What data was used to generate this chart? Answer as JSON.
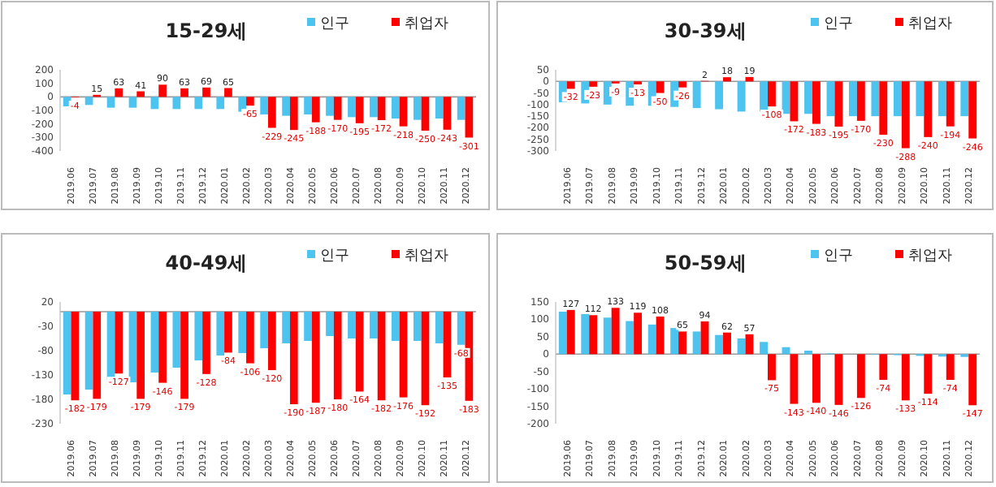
{
  "chart_data": [
    {
      "type": "bar",
      "title": "15-29세",
      "legend": "top right",
      "ylim": [
        -400,
        200
      ],
      "yticks": [
        -400,
        -300,
        -200,
        -100,
        0,
        100,
        200
      ],
      "categories": [
        "2019.06",
        "2019.07",
        "2019.08",
        "2019.09",
        "2019.10",
        "2019.11",
        "2019.12",
        "2020.01",
        "2020.02",
        "2020.03",
        "2020.04",
        "2020.05",
        "2020.06",
        "2020.07",
        "2020.08",
        "2020.09",
        "2020.10",
        "2020.11",
        "2020.12"
      ],
      "series": [
        {
          "name": "인구",
          "color": "#4dc3f0",
          "values": [
            -70,
            -60,
            -80,
            -80,
            -90,
            -90,
            -90,
            -90,
            -110,
            -130,
            -140,
            -130,
            -140,
            -150,
            -150,
            -160,
            -170,
            -160,
            -170
          ]
        },
        {
          "name": "취업자",
          "color": "#ff0000",
          "values": [
            -4,
            15,
            63,
            41,
            90,
            63,
            69,
            65,
            -65,
            -229,
            -245,
            -188,
            -170,
            -195,
            -172,
            -218,
            -250,
            -243,
            -301
          ],
          "value_labels": [
            "-4",
            "15",
            "63",
            "41",
            "90",
            "63",
            "69",
            "65",
            "-65",
            "-229",
            "-245",
            "-188",
            "-170",
            "-195",
            "-172",
            "-218",
            "-250",
            "-243",
            "-301"
          ]
        }
      ]
    },
    {
      "type": "bar",
      "title": "30-39세",
      "legend": "top right",
      "ylim": [
        -300,
        50
      ],
      "yticks": [
        -300,
        -250,
        -200,
        -150,
        -100,
        -50,
        0,
        50
      ],
      "categories": [
        "2019.06",
        "2019.07",
        "2019.08",
        "2019.09",
        "2019.10",
        "2019.11",
        "2019.12",
        "2020.01",
        "2020.02",
        "2020.03",
        "2020.04",
        "2020.05",
        "2020.06",
        "2020.07",
        "2020.08",
        "2020.09",
        "2020.10",
        "2020.11",
        "2020.12"
      ],
      "series": [
        {
          "name": "인구",
          "color": "#4dc3f0",
          "values": [
            -90,
            -95,
            -100,
            -105,
            -105,
            -110,
            -115,
            -120,
            -130,
            -130,
            -140,
            -140,
            -150,
            -150,
            -150,
            -150,
            -150,
            -150,
            -150
          ]
        },
        {
          "name": "취업자",
          "color": "#ff0000",
          "values": [
            -32,
            -23,
            -9,
            -13,
            -50,
            -26,
            2,
            18,
            19,
            -108,
            -172,
            -183,
            -195,
            -170,
            -230,
            -288,
            -240,
            -194,
            -246
          ],
          "value_labels": [
            "-32",
            "-23",
            "-9",
            "-13",
            "-50",
            "-26",
            "2",
            "18",
            "19",
            "-108",
            "-172",
            "-183",
            "-195",
            "-170",
            "-230",
            "-288",
            "-240",
            "-194",
            "-246"
          ]
        }
      ]
    },
    {
      "type": "bar",
      "title": "40-49세",
      "legend": "top right",
      "ylim": [
        -230,
        20
      ],
      "yticks": [
        -230,
        -180,
        -130,
        -80,
        -30,
        20
      ],
      "categories": [
        "2019.06",
        "2019.07",
        "2019.08",
        "2019.09",
        "2019.10",
        "2019.11",
        "2019.12",
        "2020.01",
        "2020.02",
        "2020.03",
        "2020.04",
        "2020.05",
        "2020.06",
        "2020.07",
        "2020.08",
        "2020.09",
        "2020.10",
        "2020.11",
        "2020.12"
      ],
      "series": [
        {
          "name": "인구",
          "color": "#4dc3f0",
          "values": [
            -170,
            -160,
            -140,
            -145,
            -125,
            -115,
            -100,
            -90,
            -85,
            -75,
            -65,
            -60,
            -50,
            -55,
            -55,
            -60,
            -60,
            -65,
            -68
          ],
          "value_labels": [
            null,
            null,
            null,
            null,
            null,
            null,
            null,
            null,
            null,
            null,
            null,
            null,
            null,
            null,
            null,
            null,
            null,
            null,
            "-68"
          ]
        },
        {
          "name": "취업자",
          "color": "#ff0000",
          "values": [
            -182,
            -179,
            -127,
            -179,
            -146,
            -179,
            -128,
            -84,
            -106,
            -120,
            -190,
            -187,
            -180,
            -164,
            -182,
            -176,
            -192,
            -135,
            -183
          ],
          "value_labels": [
            "-182",
            "-179",
            "-127",
            "-179",
            "-146",
            "-179",
            "-128",
            "-84",
            "-106",
            "-120",
            "-190",
            "-187",
            "-180",
            "-164",
            "-182",
            "-176",
            "-192",
            "-135",
            "-183"
          ]
        }
      ]
    },
    {
      "type": "bar",
      "title": "50-59세",
      "legend": "top right",
      "ylim": [
        -200,
        150
      ],
      "yticks": [
        -200,
        -150,
        -100,
        -50,
        0,
        50,
        100,
        150
      ],
      "categories": [
        "2019.06",
        "2019.07",
        "2019.08",
        "2019.09",
        "2019.10",
        "2019.11",
        "2019.12",
        "2020.01",
        "2020.02",
        "2020.03",
        "2020.04",
        "2020.05",
        "2020.06",
        "2020.07",
        "2020.08",
        "2020.09",
        "2020.10",
        "2020.11",
        "2020.12"
      ],
      "series": [
        {
          "name": "인구",
          "color": "#4dc3f0",
          "values": [
            122,
            115,
            105,
            95,
            85,
            75,
            65,
            55,
            45,
            35,
            20,
            10,
            2,
            0,
            -2,
            -3,
            -5,
            -7,
            -8
          ]
        },
        {
          "name": "취업자",
          "color": "#ff0000",
          "values": [
            127,
            112,
            133,
            119,
            108,
            65,
            94,
            62,
            57,
            -75,
            -143,
            -140,
            -146,
            -126,
            -74,
            -133,
            -114,
            -74,
            -147
          ],
          "value_labels": [
            "127",
            "112",
            "133",
            "119",
            "108",
            "65",
            "94",
            "62",
            "57",
            "-75",
            "-143",
            "-140",
            "-146",
            "-126",
            "-74",
            "-133",
            "-114",
            "-74",
            "-147"
          ]
        }
      ]
    }
  ]
}
